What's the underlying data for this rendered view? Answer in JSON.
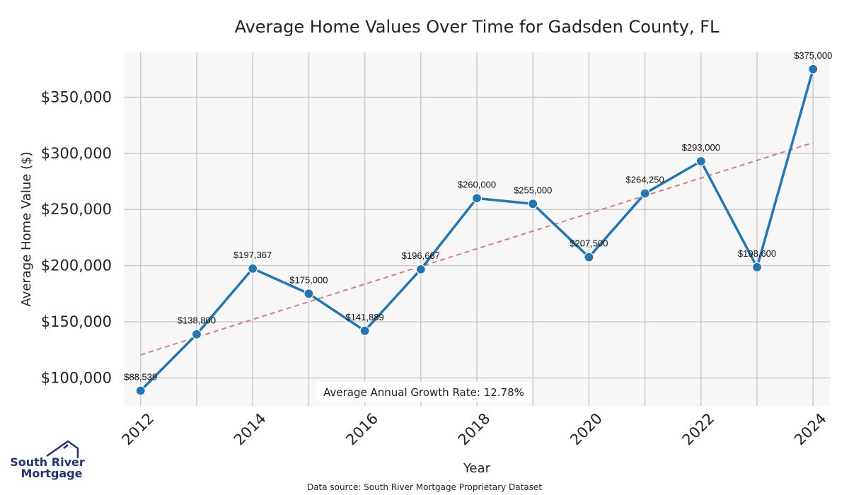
{
  "chart_data": {
    "type": "line",
    "title": "Average Home Values Over Time for Gadsden County, FL",
    "xlabel": "Year",
    "ylabel": "Average Home Value ($)",
    "x": [
      2012,
      2013,
      2014,
      2015,
      2016,
      2017,
      2018,
      2019,
      2020,
      2021,
      2022,
      2023,
      2024
    ],
    "series": [
      {
        "name": "Average Home Value",
        "color": "#2475b0",
        "values": [
          88539,
          138800,
          197367,
          175000,
          141889,
          196667,
          260000,
          255000,
          207500,
          264250,
          293000,
          198600,
          375000
        ],
        "labels": [
          "$88,539",
          "$138,800",
          "$197,367",
          "$175,000",
          "$141,889",
          "$196,667",
          "$260,000",
          "$255,000",
          "$207,500",
          "$264,250",
          "$293,000",
          "$198,600",
          "$375,000"
        ]
      },
      {
        "name": "Trend",
        "color": "#d47f7f",
        "style": "dashed",
        "start": [
          2012,
          120500
        ],
        "end": [
          2024,
          309500
        ]
      }
    ],
    "xticks": [
      2012,
      2014,
      2016,
      2018,
      2020,
      2022,
      2024
    ],
    "xtick_labels": [
      "2012",
      "2014",
      "2016",
      "2018",
      "2020",
      "2022",
      "2024"
    ],
    "yticks": [
      100000,
      150000,
      200000,
      250000,
      300000,
      350000
    ],
    "ytick_labels": [
      "$100,000",
      "$150,000",
      "$200,000",
      "$250,000",
      "$300,000",
      "$350,000"
    ],
    "xlim": [
      2011.7,
      2024.3
    ],
    "ylim": [
      75000,
      390000
    ],
    "grid": true,
    "annotation": "Average Annual Growth Rate: 12.78%"
  },
  "footer": {
    "source": "Data source: South River Mortgage Proprietary Dataset"
  },
  "logo": {
    "line1": "South River",
    "line2": "Mortgage",
    "color": "#24356b"
  }
}
